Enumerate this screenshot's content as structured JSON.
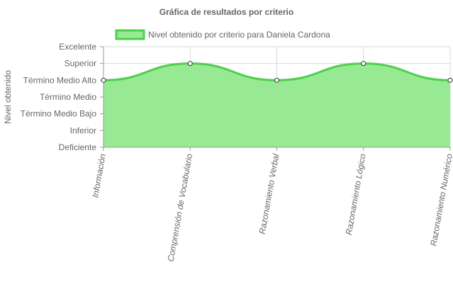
{
  "chart_data": {
    "type": "area",
    "title": "Gráfica de resultados por criterio",
    "ylabel": "Nivel obtenido",
    "xlabel": "",
    "categories": [
      "Información",
      "Comprensión de Vocabulario",
      "Razonamiento Verbal",
      "Razonamiento Lógico",
      "Razonamiento Numérico"
    ],
    "y_levels": [
      "Deficiente",
      "Inferior",
      "Término Medio Bajo",
      "Término Medio",
      "Término Medio Alto",
      "Superior",
      "Excelente"
    ],
    "series": [
      {
        "name": "Nivel obtenido por criterio para Daniela Cardona",
        "values": [
          4,
          5,
          4,
          5,
          4
        ],
        "value_labels": [
          "Término Medio Alto",
          "Superior",
          "Término Medio Alto",
          "Superior",
          "Término Medio Alto"
        ]
      }
    ],
    "ylim": [
      0,
      6
    ],
    "legend_position": "top",
    "grid": true,
    "colors": {
      "line": "#4cd04a",
      "fill": "#98e994",
      "point_fill": "#ffffff",
      "point_stroke": "#333333",
      "grid": "#d9d9d9",
      "axis": "#999999",
      "text": "#666666"
    }
  }
}
